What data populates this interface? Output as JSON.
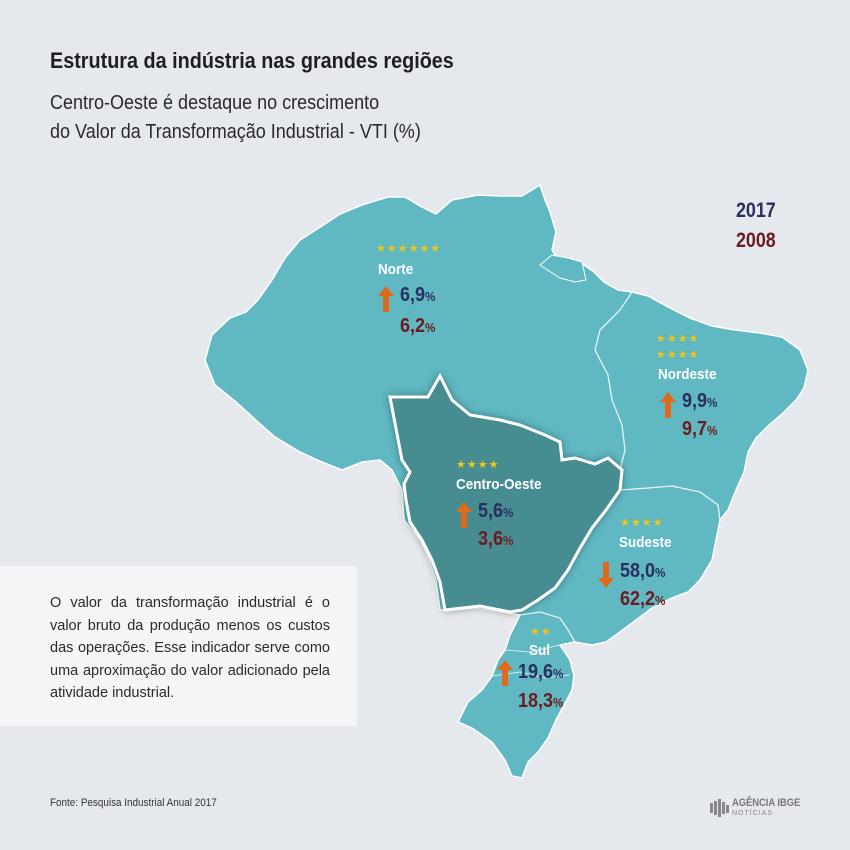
{
  "header": {
    "title": "Estrutura da indústria nas grandes regiões",
    "subtitle_line1": "Centro-Oeste é destaque no crescimento",
    "subtitle_line2": "do Valor da Transformação Industrial - VTI (%)"
  },
  "legend": {
    "year_2017": "2017",
    "year_2008": "2008",
    "color_2017": "#2a2e60",
    "color_2008": "#6d1b1e"
  },
  "colors": {
    "map_fill": "#5fb8c2",
    "centro_oeste_fill": "#468c91",
    "border": "#ffffff",
    "arrow": "#e06a1b",
    "star": "#f2c811"
  },
  "regions": {
    "norte": {
      "name": "Norte",
      "stars": "★★★★★★",
      "value_2017": "6,9",
      "value_2008": "6,2",
      "unit": "%",
      "trend": "up"
    },
    "nordeste": {
      "name": "Nordeste",
      "stars_line1": "★★★★",
      "stars_line2": "★★★★",
      "value_2017": "9,9",
      "value_2008": "9,7",
      "unit": "%",
      "trend": "up"
    },
    "centro_oeste": {
      "name": "Centro-Oeste",
      "stars": "★★★★",
      "value_2017": "5,6",
      "value_2008": "3,6",
      "unit": "%",
      "trend": "up"
    },
    "sudeste": {
      "name": "Sudeste",
      "stars": "★★★★",
      "value_2017": "58,0",
      "value_2008": "62,2",
      "unit": "%",
      "trend": "down"
    },
    "sul": {
      "name": "Sul",
      "stars": "★★",
      "value_2017": "19,6",
      "value_2008": "18,3",
      "unit": "%",
      "trend": "up"
    }
  },
  "note": {
    "text": "O valor da transformação industrial  é o valor bruto da produção menos os custos das operações. Esse indicador serve como uma aproximação do valor adicionado pela atividade industrial."
  },
  "footer": {
    "source": "Fonte: Pesquisa Industrial Anual 2017",
    "logo_name": "AGÊNCIA IBGE",
    "logo_sub": "NOTÍCIAS"
  }
}
